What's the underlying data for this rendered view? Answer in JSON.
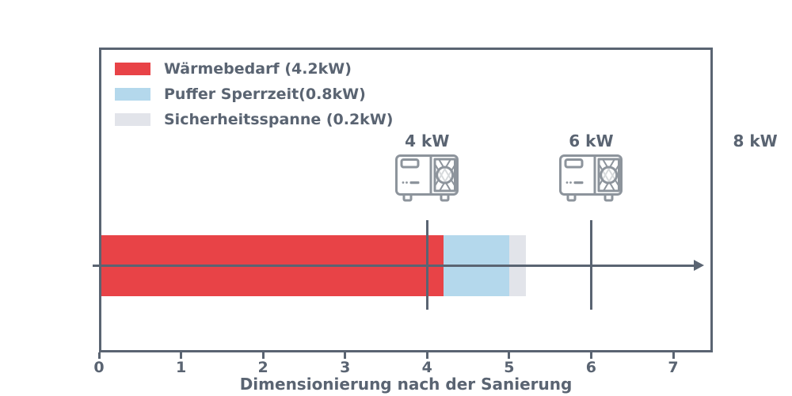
{
  "palette": {
    "frame_and_text": "#5a6472",
    "icon_stroke": "#8d949c",
    "background": "#ffffff"
  },
  "chart_data": {
    "type": "bar",
    "orientation": "horizontal",
    "stacked": true,
    "title": "",
    "xlabel": "Dimensionierung nach der Sanierung",
    "ylabel": "",
    "xlim": [
      0,
      7.48
    ],
    "x_ticks": [
      0,
      1,
      2,
      3,
      4,
      5,
      6,
      7
    ],
    "x_tick_labels": [
      "0",
      "1",
      "2",
      "3",
      "4",
      "5",
      "6",
      "7"
    ],
    "grid": false,
    "legend_position": "upper left",
    "series": [
      {
        "name": "Wärmebedarf (4.2kW)",
        "value_kw": 4.2,
        "color": "#e84347"
      },
      {
        "name": "Puffer Sperrzeit(0.8kW)",
        "value_kw": 0.8,
        "color": "#b4d8ec"
      },
      {
        "name": "Sicherheitsspanne (0.2kW)",
        "value_kw": 0.2,
        "color": "#e2e4ea"
      }
    ],
    "total_kw": 5.2,
    "markers": [
      {
        "label": "4 kW",
        "x_kw": 4,
        "icon": "heat-pump-outdoor-unit-icon",
        "line": true
      },
      {
        "label": "6 kW",
        "x_kw": 6,
        "icon": "heat-pump-outdoor-unit-icon",
        "line": true
      },
      {
        "label": "8 kW",
        "x_kw": 8,
        "icon": null,
        "line": false
      }
    ],
    "axis_arrow": "right"
  }
}
